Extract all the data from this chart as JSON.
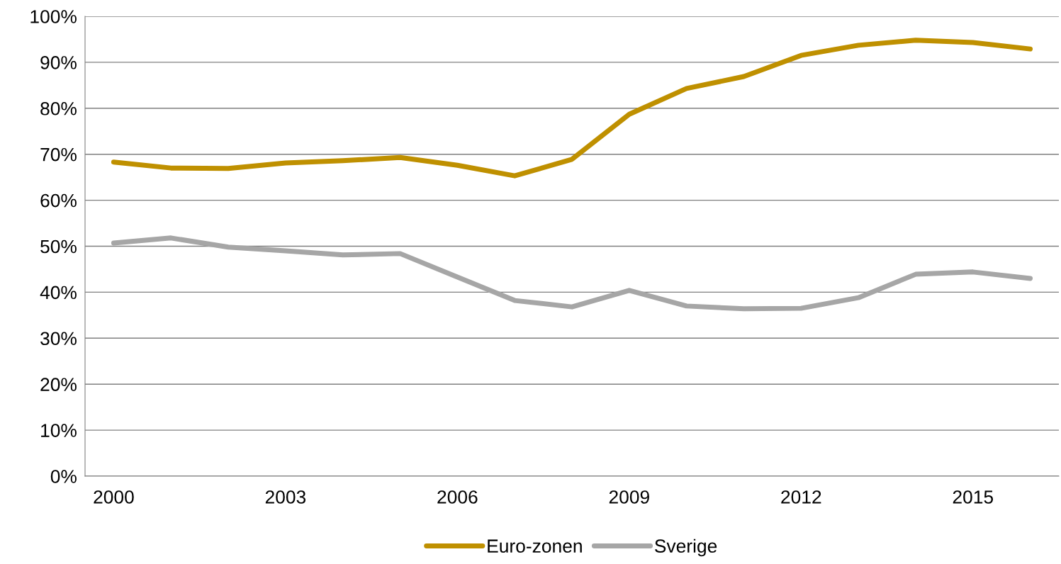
{
  "chart_data": {
    "type": "line",
    "categories": [
      "2000",
      null,
      null,
      "2003",
      null,
      null,
      "2006",
      null,
      null,
      "2009",
      null,
      null,
      "2012",
      null,
      null,
      "2015",
      null
    ],
    "series": [
      {
        "name": "Euro-zonen",
        "color": "#bf9000",
        "values": [
          68.3,
          67.0,
          66.9,
          68.1,
          68.6,
          69.3,
          67.6,
          65.3,
          68.9,
          78.7,
          84.3,
          86.9,
          91.5,
          93.7,
          94.8,
          94.3,
          92.9
        ]
      },
      {
        "name": "Sverige",
        "color": "#a6a6a6",
        "values": [
          50.7,
          51.8,
          49.8,
          49.0,
          48.1,
          48.4,
          43.3,
          38.2,
          36.8,
          40.4,
          37.0,
          36.4,
          36.5,
          38.8,
          43.9,
          44.4,
          43.0
        ]
      }
    ],
    "ylim": [
      0,
      100
    ],
    "yticks": [
      {
        "value": 0,
        "label": "0%"
      },
      {
        "value": 10,
        "label": "10%"
      },
      {
        "value": 20,
        "label": "20%"
      },
      {
        "value": 30,
        "label": "30%"
      },
      {
        "value": 40,
        "label": "40%"
      },
      {
        "value": 50,
        "label": "50%"
      },
      {
        "value": 60,
        "label": "60%"
      },
      {
        "value": 70,
        "label": "70%"
      },
      {
        "value": 80,
        "label": "80%"
      },
      {
        "value": 90,
        "label": "90%"
      },
      {
        "value": 100,
        "label": "100%"
      }
    ],
    "grid": "y",
    "legend": "bottom",
    "marker": "none",
    "line_style": "solid"
  }
}
